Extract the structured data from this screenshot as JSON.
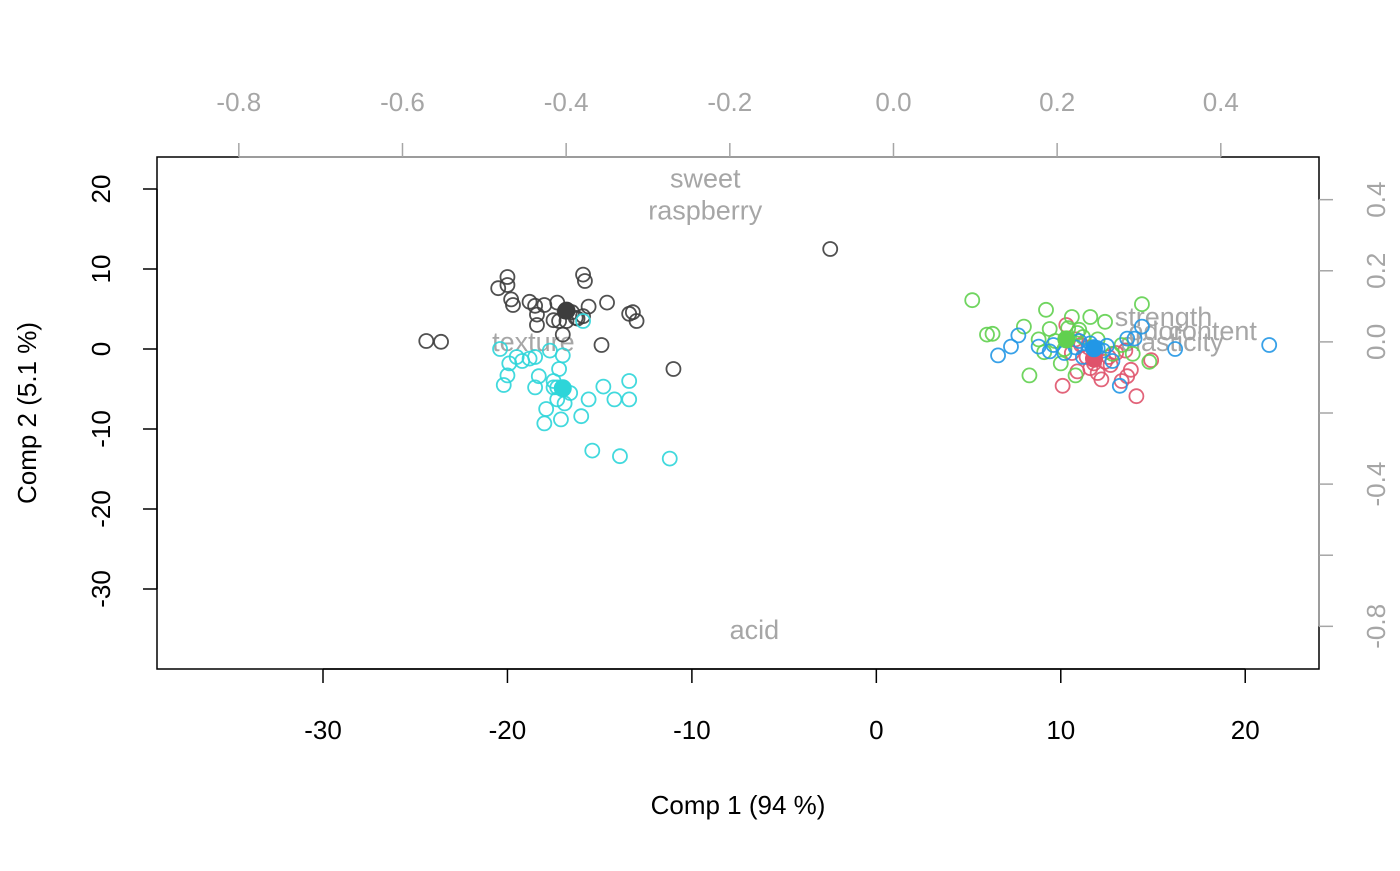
{
  "chart_data": {
    "type": "scatter",
    "title": "",
    "xlabel": "Comp 1 (94 %)",
    "ylabel": "Comp 2 (5.1 %)",
    "xlim": [
      -39,
      24
    ],
    "ylim": [
      -40,
      24
    ],
    "x_ticks": [
      -30,
      -20,
      -10,
      0,
      10,
      20
    ],
    "y_ticks": [
      20,
      10,
      0,
      -10,
      -20,
      -30
    ],
    "secondary_x_ticks": [
      -0.8,
      -0.6,
      -0.4,
      -0.2,
      0.0,
      0.2,
      0.4
    ],
    "secondary_y_ticks": [
      0.4,
      0.2,
      0.0,
      -0.4,
      -0.8
    ],
    "secondary_xlim": [
      -0.9,
      0.52
    ],
    "secondary_ylim": [
      -0.92,
      0.52
    ],
    "colors": {
      "axis": "#000000",
      "secondary": "#a6a6a6"
    },
    "variables": [
      {
        "label": "sweet",
        "x": -0.23,
        "y": 0.46
      },
      {
        "label": "raspberry",
        "x": -0.23,
        "y": 0.37
      },
      {
        "label": "texture",
        "x": -0.44,
        "y": 0.0
      },
      {
        "label": "acid",
        "x": -0.17,
        "y": -0.81
      },
      {
        "label": "strength",
        "x": 0.33,
        "y": 0.07
      },
      {
        "label": "odor",
        "x": 0.32,
        "y": 0.03
      },
      {
        "label": "content",
        "x": 0.39,
        "y": 0.03
      },
      {
        "label": "elasticity",
        "x": 0.34,
        "y": 0.0
      }
    ],
    "series": [
      {
        "color": "#3d3d3d",
        "centroid": [
          -16.8,
          4.8
        ],
        "x": [
          -24.4,
          -23.6,
          -20.5,
          -20.0,
          -20.0,
          -19.8,
          -19.7,
          -18.8,
          -18.5,
          -18.4,
          -18.4,
          -18.0,
          -17.5,
          -17.3,
          -17.2,
          -17.0,
          -16.8,
          -16.5,
          -16.2,
          -15.9,
          -15.8,
          -15.6,
          -14.6,
          -14.9,
          -13.4,
          -13.2,
          -13.0,
          -11.0,
          -2.5,
          -16.9,
          -15.9,
          -16.3
        ],
        "y": [
          1.0,
          0.9,
          7.6,
          9.0,
          8.0,
          6.2,
          5.5,
          5.9,
          5.4,
          4.3,
          3.0,
          5.5,
          3.6,
          5.8,
          3.5,
          1.8,
          3.5,
          4.6,
          3.8,
          9.3,
          8.5,
          5.3,
          5.8,
          0.5,
          4.4,
          4.6,
          3.5,
          -2.5,
          12.5,
          4.7,
          4.1,
          3.9
        ]
      },
      {
        "color": "#2dd5d9",
        "centroid": [
          -17.0,
          -4.9
        ],
        "x": [
          -20.4,
          -20.2,
          -20.0,
          -19.9,
          -19.5,
          -19.2,
          -18.8,
          -18.5,
          -18.3,
          -18.0,
          -17.9,
          -17.7,
          -17.5,
          -17.3,
          -17.3,
          -17.1,
          -17.0,
          -16.9,
          -16.6,
          -16.0,
          -15.9,
          -15.6,
          -15.4,
          -14.8,
          -14.2,
          -13.9,
          -13.4,
          -13.4,
          -11.2,
          -18.5,
          -17.2,
          -17.5
        ],
        "y": [
          0.0,
          -4.5,
          -3.3,
          -1.8,
          -1.0,
          -1.5,
          -1.2,
          -4.8,
          -3.4,
          -9.3,
          -7.5,
          -0.2,
          -4.0,
          -4.8,
          -6.3,
          -8.8,
          -0.8,
          -6.8,
          -5.5,
          -8.4,
          3.5,
          -6.3,
          -12.7,
          -4.7,
          -6.3,
          -13.4,
          -4.0,
          -6.3,
          -13.7,
          -1.0,
          -2.5,
          -4.8
        ]
      },
      {
        "color": "#df536b",
        "centroid": [
          11.8,
          -1.2
        ],
        "x": [
          10.1,
          10.3,
          10.6,
          10.9,
          11.1,
          11.4,
          11.6,
          11.8,
          12.0,
          12.2,
          12.4,
          12.7,
          13.0,
          13.3,
          13.6,
          13.8,
          14.1,
          14.9,
          10.8,
          11.5,
          12.6,
          13.5
        ],
        "y": [
          -4.6,
          3.0,
          -0.5,
          -2.8,
          0.5,
          -1.0,
          -2.4,
          -1.8,
          -3.0,
          -3.8,
          -1.6,
          -2.0,
          -0.5,
          -4.0,
          -3.4,
          -2.6,
          -5.9,
          -1.4,
          1.2,
          0.2,
          -1.0,
          -0.2
        ]
      },
      {
        "color": "#61d04f",
        "centroid": [
          10.3,
          1.2
        ],
        "x": [
          5.2,
          6.0,
          6.3,
          8.0,
          8.3,
          8.8,
          9.2,
          9.4,
          9.7,
          10.0,
          10.2,
          10.4,
          10.6,
          10.8,
          11.0,
          11.2,
          11.6,
          12.0,
          12.4,
          12.8,
          13.3,
          13.9,
          14.4,
          14.8,
          10.9,
          9.1
        ],
        "y": [
          6.1,
          1.8,
          1.9,
          2.8,
          -3.3,
          1.2,
          4.9,
          2.5,
          1.0,
          -1.8,
          0.0,
          2.6,
          4.0,
          -3.3,
          2.4,
          1.5,
          4.0,
          1.2,
          3.4,
          -0.6,
          0.5,
          -0.6,
          5.6,
          -1.6,
          2.0,
          -0.4
        ]
      },
      {
        "color": "#2297e6",
        "centroid": [
          11.8,
          0.1
        ],
        "x": [
          6.6,
          7.3,
          7.7,
          8.8,
          9.4,
          9.6,
          10.2,
          10.8,
          11.2,
          11.6,
          12.0,
          12.3,
          12.8,
          13.2,
          13.6,
          14.0,
          14.4,
          16.2,
          21.3,
          12.5,
          11.0
        ],
        "y": [
          -0.8,
          0.3,
          1.7,
          0.3,
          -0.3,
          0.5,
          -0.5,
          0.2,
          -1.0,
          0.7,
          0.1,
          -0.2,
          -1.5,
          -4.6,
          1.3,
          1.3,
          2.8,
          0.0,
          0.5,
          0.4,
          1.0
        ]
      }
    ]
  }
}
